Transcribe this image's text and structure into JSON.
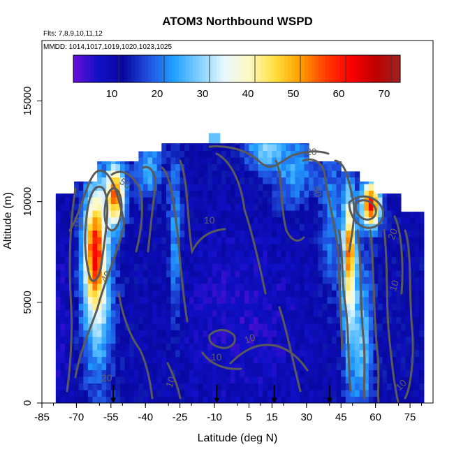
{
  "chart_data": {
    "type": "heatmap",
    "title": "ATOM3 Northbound WSPD",
    "subtitle_flights": "Flts: 7,8,9,10,11,12",
    "subtitle_dates": "MMDD: 1014,1017,1019,1020,1023,1025",
    "xlabel": "Latitude (deg N)",
    "ylabel": "Altitude (m)",
    "xlim": [
      -85,
      85
    ],
    "ylim": [
      0,
      18000
    ],
    "xticks": [
      "-85",
      "-70",
      "-55",
      "-40",
      "-25",
      "-10",
      "5",
      "15",
      "30",
      "45",
      "60",
      "75"
    ],
    "xtick_values": [
      -85,
      -70,
      -55,
      -40,
      -25,
      -10,
      5,
      15,
      30,
      45,
      60,
      75
    ],
    "yticks": [
      "0",
      "5000",
      "10000",
      "15000"
    ],
    "ytick_values": [
      0,
      5000,
      10000,
      15000
    ],
    "colorbar": {
      "range": [
        0,
        72
      ],
      "ticks": [
        "10",
        "20",
        "30",
        "40",
        "50",
        "60",
        "70"
      ],
      "tick_values": [
        10,
        20,
        30,
        40,
        50,
        60,
        70
      ],
      "colors": [
        "#6a0dd8",
        "#1010c8",
        "#0808a0",
        "#2050e0",
        "#20a0ff",
        "#80d0ff",
        "#e8f8ff",
        "#fff8c0",
        "#ffe040",
        "#ffa000",
        "#ff4000",
        "#ff0000",
        "#c00000",
        "#a02020"
      ]
    },
    "contour_labels": [
      "50",
      "10",
      "40",
      "20",
      "10",
      "10",
      "10",
      "20",
      "50",
      "10",
      "10",
      "20",
      "10"
    ],
    "contour_label_values": [
      50,
      10,
      40,
      20,
      10,
      10,
      10,
      20,
      50,
      10,
      10,
      20,
      10
    ],
    "flight_profile_arrows_lat": [
      -54,
      -9,
      16,
      40
    ]
  }
}
